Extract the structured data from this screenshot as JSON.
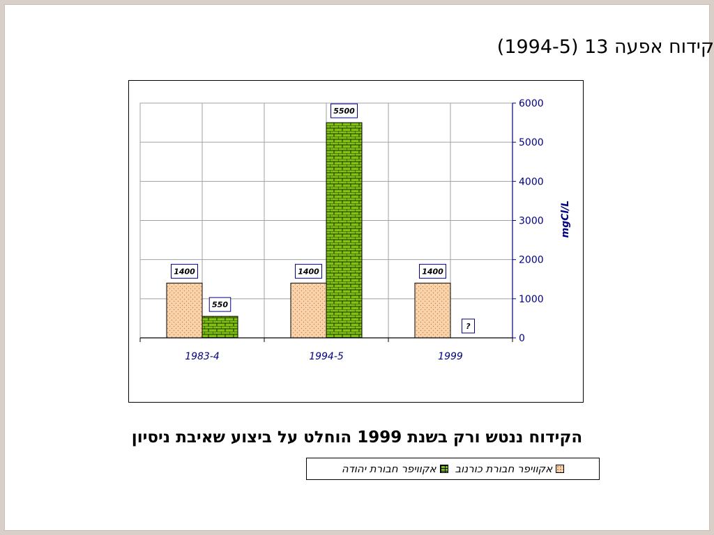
{
  "slide": {
    "title": "קידוח אפעה 13 (1994-5)",
    "caption": "הקידוח ננטש ורק בשנת 1999 הוחלט על ביצוע שאיבת ניסיון"
  },
  "colors": {
    "series_1": "#fcd3a8",
    "series_2": "#7fc20f",
    "axis": "#000080",
    "label_border": "#000080"
  },
  "chart_data": {
    "type": "bar",
    "categories": [
      "1983-4",
      "1994-5",
      "1999"
    ],
    "series": [
      {
        "name": "אקוויפר חבורת כורנוב",
        "values": [
          1400,
          1400,
          1400
        ],
        "labels": [
          "1400",
          "1400",
          "1400"
        ]
      },
      {
        "name": "אקוויפר חבורת יהודה",
        "values": [
          550,
          5500,
          null
        ],
        "labels": [
          "550",
          "5500",
          "?"
        ]
      }
    ],
    "ylabel": "mgCl/L",
    "ylim": [
      0,
      6000
    ],
    "yticks": [
      0,
      1000,
      2000,
      3000,
      4000,
      5000,
      6000
    ],
    "y_axis_side": "right",
    "grid": true,
    "legend_position": "bottom"
  }
}
